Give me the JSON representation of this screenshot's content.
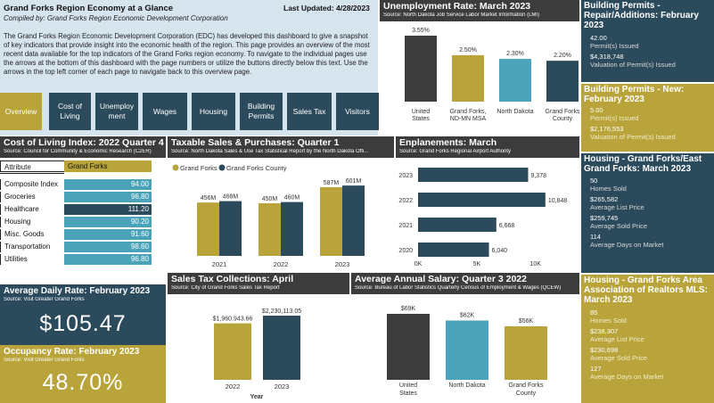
{
  "header": {
    "title": "Grand Forks Region Economy at a Glance",
    "subtitle": "Compiled by: Grand Forks Region Economic Development Corporation",
    "last_updated": "Last Updated: 4/28/2023",
    "description": "The Grand Forks Region Economic Development Corporation (EDC) has developed this dashboard to give a snapshot of key indicators that provide insight into the economic health of the region. This page provides an overview of the most recent data available for the top indicators of the Grand Forks region economy. To navigate to the individual pages use the arrows at the bottom of this dashboard with the page numbers or utilize the buttons directly below this text. Use the arrows in the top left corner of each page to navigate back to this overview page."
  },
  "nav": [
    "Overview",
    "Cost of Living",
    "Unemployment",
    "Wages",
    "Housing",
    "Building Permits",
    "Sales Tax",
    "Visitors"
  ],
  "unemployment": {
    "title": "Unemployment Rate: March 2023",
    "source": "Source: North Dakota Job Service Labor Market Information (LMI)",
    "chart_data": {
      "type": "bar",
      "title": "Unemployment Rate: March 2023",
      "categories": [
        "United States",
        "Grand Forks, ND-MN MSA",
        "North Dakota",
        "Grand Forks County"
      ],
      "values": [
        3.55,
        2.5,
        2.3,
        2.2
      ],
      "labels": [
        "3.55%",
        "2.50%",
        "2.30%",
        "2.20%"
      ],
      "colors": [
        "#3c3c3c",
        "#b8a43a",
        "#4aa3b8",
        "#2b4a5c"
      ]
    }
  },
  "permits_repair": {
    "title": "Building Permits - Repair/Additions: February 2023",
    "issued_value": "42.00",
    "issued_label": "Permit(s) Issued",
    "valuation_value": "$4,318,748",
    "valuation_label": "Valuation of Permit(s) Issued"
  },
  "permits_new": {
    "title": "Building Permits - New: February 2023",
    "issued_value": "5.00",
    "issued_label": "Permit(s) Issued",
    "valuation_value": "$2,176,553",
    "valuation_label": "Valuation of Permit(s) Issued"
  },
  "housing_gf": {
    "title": "Housing - Grand Forks/East Grand Forks: March 2023",
    "items": [
      {
        "value": "50",
        "label": "Homes Sold"
      },
      {
        "value": "$265,582",
        "label": "Average List Price"
      },
      {
        "value": "$259,745",
        "label": "Average Sold Price"
      },
      {
        "value": "114",
        "label": "Average Days on Market"
      }
    ]
  },
  "housing_mls": {
    "title": "Housing - Grand Forks Area Association of Realtors MLS: March 2023",
    "items": [
      {
        "value": "85",
        "label": "Homes Sold"
      },
      {
        "value": "$238,307",
        "label": "Average List Price"
      },
      {
        "value": "$230,698",
        "label": "Average Sold Price"
      },
      {
        "value": "127",
        "label": "Average Days on Market"
      }
    ]
  },
  "cost_of_living": {
    "title": "Cost of Living Index: 2022 Quarter 4",
    "source": "Source: Council for Community & Economic Research (C2ER)",
    "header_attr": "Attribute",
    "header_val": "Grand Forks",
    "rows": [
      {
        "label": "Composite Index",
        "value": "94.00"
      },
      {
        "label": "Groceries",
        "value": "96.80"
      },
      {
        "label": "Healthcare",
        "value": "111.20"
      },
      {
        "label": "Housing",
        "value": "90.20"
      },
      {
        "label": "Misc. Goods",
        "value": "91.60"
      },
      {
        "label": "Transportation",
        "value": "98.60"
      },
      {
        "label": "Utilities",
        "value": "96.80"
      }
    ]
  },
  "taxable_sales": {
    "title": "Taxable Sales & Purchases: Quarter 1",
    "source": "Source: North Dakota Sales & Use Tax Statistical Report by the North Dakota Offi...",
    "chart_data": {
      "type": "bar",
      "title": "Taxable Sales & Purchases: Quarter 1",
      "categories": [
        "2021",
        "2022",
        "2023"
      ],
      "series": [
        {
          "name": "Grand Forks",
          "values": [
            456,
            450,
            587
          ],
          "labels": [
            "456M",
            "450M",
            "587M"
          ],
          "color": "#b8a43a"
        },
        {
          "name": "Grand Forks County",
          "values": [
            468,
            460,
            601
          ],
          "labels": [
            "468M",
            "460M",
            "601M"
          ],
          "color": "#2b4a5c"
        }
      ],
      "ylim": [
        0,
        640
      ]
    }
  },
  "enplanements": {
    "title": "Enplanements: March",
    "source": "Source: Grand Forks Regional Airport Authority",
    "chart_data": {
      "type": "bar",
      "orientation": "horizontal",
      "title": "Enplanements: March",
      "categories": [
        "2023",
        "2022",
        "2021",
        "2020"
      ],
      "values": [
        9378,
        10848,
        6668,
        6040
      ],
      "labels": [
        "9,378",
        "10,848",
        "6,668",
        "6,040"
      ],
      "xticks": [
        "0K",
        "5K",
        "10K"
      ],
      "xlim": [
        0,
        12000
      ]
    }
  },
  "adr": {
    "title": "Average Daily Rate: February 2023",
    "source": "Source: Visit Greater Grand Forks",
    "value": "$105.47"
  },
  "occupancy": {
    "title": "Occupancy Rate: February 2023",
    "source": "Source: Visit Greater Grand Forks",
    "value": "48.70%"
  },
  "sales_tax": {
    "title": "Sales Tax Collections: April",
    "source": "Source: City of Grand Forks Sales Tax Report",
    "chart_data": {
      "type": "bar",
      "title": "Sales Tax Collections: April",
      "categories": [
        "2022",
        "2023"
      ],
      "values": [
        1960943.66,
        2230113.05
      ],
      "labels": [
        "$1,960,943.66",
        "$2,230,113.05"
      ],
      "colors": [
        "#b8a43a",
        "#2b4a5c"
      ],
      "xlabel": "Year"
    }
  },
  "salary": {
    "title": "Average Annual Salary: Quarter 3 2022",
    "source": "Source: Bureau of Labor Statistics Quarterly Census of Employment & Wages (QCEW)",
    "chart_data": {
      "type": "bar",
      "title": "Average Annual Salary: Quarter 3 2022",
      "categories": [
        "United States",
        "North Dakota",
        "Grand Forks County"
      ],
      "values": [
        69,
        62,
        56
      ],
      "labels": [
        "$69K",
        "$62K",
        "$56K"
      ],
      "colors": [
        "#3c3c3c",
        "#4aa3b8",
        "#b8a43a"
      ]
    }
  }
}
